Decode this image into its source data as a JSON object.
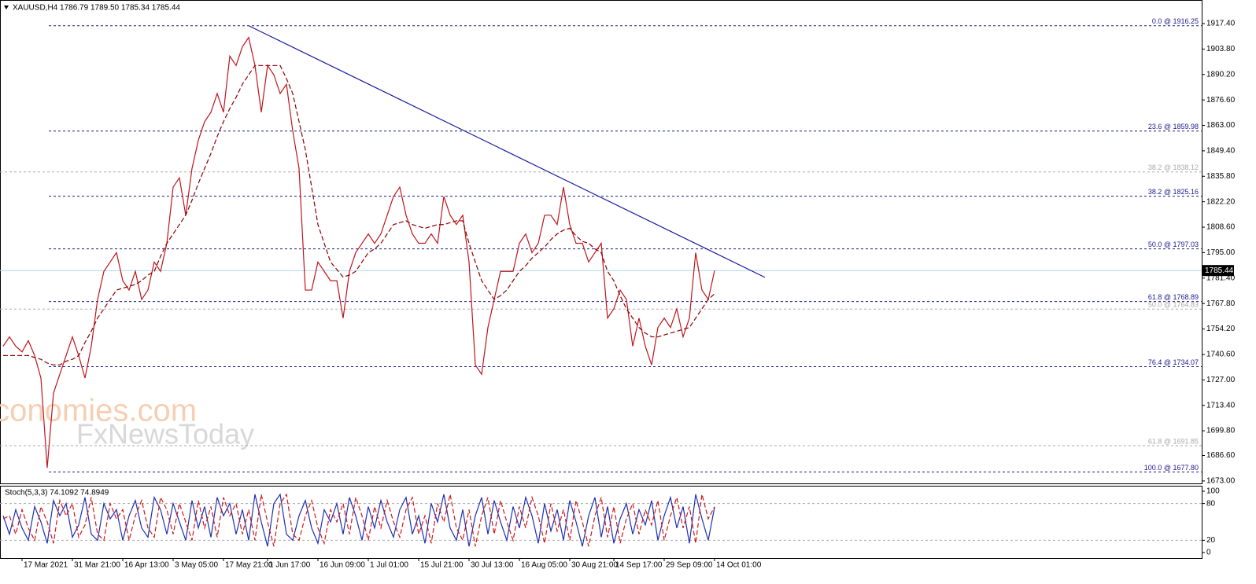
{
  "chart_data": [
    {
      "type": "line",
      "title": "XAUUSD,H4  1786.79 1789.50 1785.34 1785.44",
      "watermark": [
        "economies.com",
        "FxNewsToday"
      ],
      "categories": [
        null,
        null,
        null,
        "17 Mar 2021",
        null,
        null,
        null,
        null,
        null,
        null,
        null,
        "31 Mar 21:00",
        null,
        null,
        null,
        null,
        null,
        null,
        null,
        "16 Apr 13:00",
        null,
        null,
        null,
        null,
        null,
        null,
        null,
        "3 May 05:00",
        null,
        null,
        null,
        null,
        null,
        null,
        null,
        "17 May 21:00",
        null,
        null,
        null,
        null,
        null,
        null,
        "1 Jun 17:00",
        null,
        null,
        null,
        null,
        null,
        null,
        null,
        "16 Jun 09:00",
        null,
        null,
        null,
        null,
        null,
        null,
        null,
        "1 Jul 01:00",
        null,
        null,
        null,
        null,
        null,
        null,
        null,
        "15 Jul 21:00",
        null,
        null,
        null,
        null,
        null,
        null,
        null,
        "30 Jul 13:00",
        null,
        null,
        null,
        null,
        null,
        null,
        null,
        "16 Aug 05:00",
        null,
        null,
        null,
        null,
        null,
        null,
        null,
        "30 Aug 21:00",
        null,
        null,
        null,
        null,
        null,
        null,
        "14 Sep 17:00",
        null,
        null,
        null,
        null,
        null,
        null,
        null,
        "29 Sep 09:00",
        null,
        null,
        null,
        null,
        null,
        null,
        null,
        "14 Oct 01:00"
      ],
      "series": [
        {
          "color": "#c0141c",
          "style": "solid",
          "values": [
            1745,
            1750,
            1745,
            1742,
            1748,
            1740,
            1728,
            1680,
            1720,
            1730,
            1740,
            1750,
            1740,
            1728,
            1745,
            1770,
            1785,
            1790,
            1795,
            1780,
            1775,
            1785,
            1770,
            1775,
            1790,
            1785,
            1800,
            1830,
            1835,
            1815,
            1840,
            1855,
            1865,
            1870,
            1880,
            1870,
            1900,
            1895,
            1905,
            1910,
            1895,
            1870,
            1895,
            1890,
            1880,
            1885,
            1860,
            1840,
            1775,
            1775,
            1790,
            1785,
            1780,
            1780,
            1760,
            1785,
            1795,
            1800,
            1805,
            1800,
            1805,
            1815,
            1825,
            1830,
            1815,
            1805,
            1800,
            1800,
            1805,
            1800,
            1825,
            1815,
            1810,
            1815,
            1790,
            1735,
            1730,
            1755,
            1770,
            1785,
            1785,
            1785,
            1800,
            1805,
            1795,
            1800,
            1815,
            1815,
            1810,
            1830,
            1810,
            1800,
            1800,
            1790,
            1795,
            1800,
            1760,
            1765,
            1775,
            1770,
            1745,
            1760,
            1745,
            1735,
            1755,
            1760,
            1755,
            1765,
            1750,
            1760,
            1795,
            1775,
            1770,
            1785.44
          ]
        },
        {
          "color": "#8b0000",
          "style": "dashed",
          "values": [
            1740,
            1740,
            1740,
            1740,
            1740,
            1739,
            1738,
            1736,
            1735,
            1735,
            1737,
            1738,
            1740,
            1747,
            1753,
            1760,
            1765,
            1770,
            1775,
            1776,
            1777,
            1778,
            1780,
            1783,
            1785,
            1793,
            1800,
            1805,
            1810,
            1815,
            1823,
            1832,
            1840,
            1848,
            1857,
            1865,
            1872,
            1878,
            1885,
            1890,
            1895,
            1895,
            1895,
            1895,
            1895,
            1888,
            1880,
            1865,
            1850,
            1830,
            1810,
            1800,
            1790,
            1786,
            1782,
            1783,
            1785,
            1790,
            1795,
            1797,
            1800,
            1805,
            1810,
            1811,
            1812,
            1810,
            1809,
            1808,
            1809,
            1810,
            1810,
            1811,
            1812,
            1812,
            1800,
            1790,
            1780,
            1775,
            1770,
            1772,
            1775,
            1780,
            1785,
            1788,
            1792,
            1795,
            1798,
            1802,
            1805,
            1807,
            1808,
            1804,
            1801,
            1800,
            1797,
            1795,
            1785,
            1780,
            1772,
            1765,
            1760,
            1755,
            1752,
            1750,
            1750,
            1751,
            1752,
            1753,
            1754,
            1755,
            1760,
            1765,
            1770,
            1773
          ]
        }
      ],
      "ylim": [
        1671.7,
        1930.0
      ],
      "yticks": [
        {
          "value": 1917.4,
          "label": "1917.40"
        },
        {
          "value": 1903.8,
          "label": "1903.80"
        },
        {
          "value": 1890.2,
          "label": "1890.20"
        },
        {
          "value": 1876.6,
          "label": "1876.60"
        },
        {
          "value": 1863,
          "label": "1863.00"
        },
        {
          "value": 1849.4,
          "label": "1849.40"
        },
        {
          "value": 1835.8,
          "label": "1835.80"
        },
        {
          "value": 1822.2,
          "label": "1822.20"
        },
        {
          "value": 1808.6,
          "label": "1808.60"
        },
        {
          "value": 1795,
          "label": "1795.00"
        },
        {
          "value": 1781.4,
          "label": "1781.40"
        },
        {
          "value": 1767.8,
          "label": "1767.80"
        },
        {
          "value": 1754.2,
          "label": "1754.20"
        },
        {
          "value": 1740.6,
          "label": "1740.60"
        },
        {
          "value": 1727,
          "label": "1727.00"
        },
        {
          "value": 1713.4,
          "label": "1713.40"
        },
        {
          "value": 1699.8,
          "label": "1699.80"
        },
        {
          "value": 1686.6,
          "label": "1686.60"
        },
        {
          "value": 1673,
          "label": "1673.00"
        }
      ],
      "current_price": 1785.44,
      "levels": [
        {
          "value": 1916.25,
          "label": "0.0 @ 1916.25",
          "color": "#1a1a8c"
        },
        {
          "value": 1859.98,
          "label": "23.6 @ 1859.98",
          "color": "#1a1a8c"
        },
        {
          "value": 1838.12,
          "label": "38.2 @ 1838.12",
          "color": "#aaaaaa"
        },
        {
          "value": 1825.16,
          "label": "38.2 @ 1825.16",
          "color": "#1a1a8c"
        },
        {
          "value": 1797.03,
          "label": "50.0 @ 1797.03",
          "color": "#1a1a8c"
        },
        {
          "value": 1768.89,
          "label": "61.8 @ 1768.89",
          "color": "#1a1a8c"
        },
        {
          "value": 1764.83,
          "label": "50.0 @ 1764.83",
          "color": "#aaaaaa"
        },
        {
          "value": 1734.07,
          "label": "76.4 @ 1734.07",
          "color": "#1a1a8c"
        },
        {
          "value": 1691.85,
          "label": "61.8 @ 1691.85",
          "color": "#aaaaaa"
        },
        {
          "value": 1677.8,
          "label": "100.0 @ 1677.80",
          "color": "#1a1a8c"
        }
      ],
      "trendline": {
        "x": [
          39,
          121
        ],
        "y": [
          1916.25,
          1781.8
        ],
        "color": "#1a1aa0"
      }
    },
    {
      "type": "line",
      "title": "Stoch(5,3,3) 74.1092 74.8949",
      "series": [
        {
          "color": "#1f2fb0",
          "style": "solid",
          "values": [
            60,
            30,
            70,
            40,
            20,
            75,
            50,
            15,
            85,
            60,
            80,
            25,
            45,
            90,
            30,
            20,
            80,
            55,
            70,
            20,
            60,
            85,
            40,
            25,
            90,
            70,
            30,
            80,
            50,
            20,
            85,
            40,
            75,
            25,
            90,
            60,
            80,
            30,
            70,
            20,
            95,
            50,
            10,
            80,
            95,
            30,
            20,
            60,
            85,
            40,
            15,
            70,
            50,
            80,
            30,
            90,
            60,
            20,
            75,
            40,
            85,
            50,
            25,
            70,
            90,
            30,
            60,
            15,
            80,
            50,
            95,
            40,
            20,
            70,
            10,
            60,
            90,
            30,
            85,
            50,
            20,
            75,
            40,
            90,
            60,
            15,
            80,
            35,
            70,
            20,
            85,
            50,
            10,
            60,
            90,
            25,
            75,
            15,
            55,
            80,
            30,
            70,
            45,
            85,
            20,
            60,
            90,
            40,
            75,
            15,
            95,
            55,
            20,
            74.1092
          ]
        },
        {
          "color": "#d01818",
          "style": "dashed",
          "values": [
            55,
            60,
            30,
            70,
            40,
            20,
            75,
            50,
            15,
            85,
            60,
            80,
            25,
            45,
            90,
            30,
            20,
            80,
            55,
            70,
            20,
            60,
            85,
            40,
            25,
            90,
            70,
            30,
            80,
            50,
            20,
            85,
            40,
            75,
            25,
            90,
            60,
            80,
            30,
            70,
            20,
            95,
            50,
            10,
            80,
            95,
            30,
            20,
            60,
            85,
            40,
            15,
            70,
            50,
            80,
            30,
            90,
            60,
            20,
            75,
            40,
            85,
            50,
            25,
            70,
            90,
            30,
            60,
            15,
            80,
            50,
            95,
            40,
            20,
            70,
            10,
            60,
            90,
            30,
            85,
            50,
            20,
            75,
            40,
            90,
            60,
            15,
            80,
            35,
            70,
            20,
            85,
            50,
            10,
            60,
            90,
            25,
            75,
            15,
            55,
            80,
            30,
            70,
            45,
            85,
            20,
            60,
            90,
            40,
            75,
            15,
            95,
            55,
            74.8949
          ]
        }
      ],
      "ylim": [
        -9,
        109
      ],
      "yticks": [
        0,
        20,
        80,
        100
      ],
      "levels": [
        20,
        80
      ]
    }
  ]
}
